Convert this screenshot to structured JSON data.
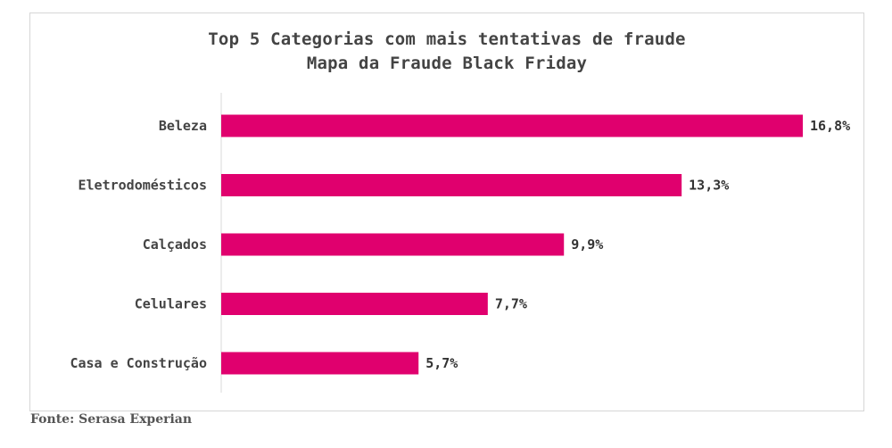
{
  "source_text": "Fonte: Serasa Experian",
  "chart_data": {
    "type": "bar",
    "orientation": "horizontal",
    "title": "Top 5 Categorias com mais tentativas de fraude",
    "subtitle": "Mapa da Fraude Black Friday",
    "categories": [
      "Beleza",
      "Eletrodomésticos",
      "Calçados",
      "Celulares",
      "Casa e Construção"
    ],
    "values": [
      16.8,
      13.3,
      9.9,
      7.7,
      5.7
    ],
    "value_labels": [
      "16,8%",
      "13,3%",
      "9,9%",
      "7,7%",
      "5,7%"
    ],
    "xlim": [
      0,
      16.8
    ],
    "grid": false,
    "legend": "none",
    "bar_color": "#e0006e"
  }
}
